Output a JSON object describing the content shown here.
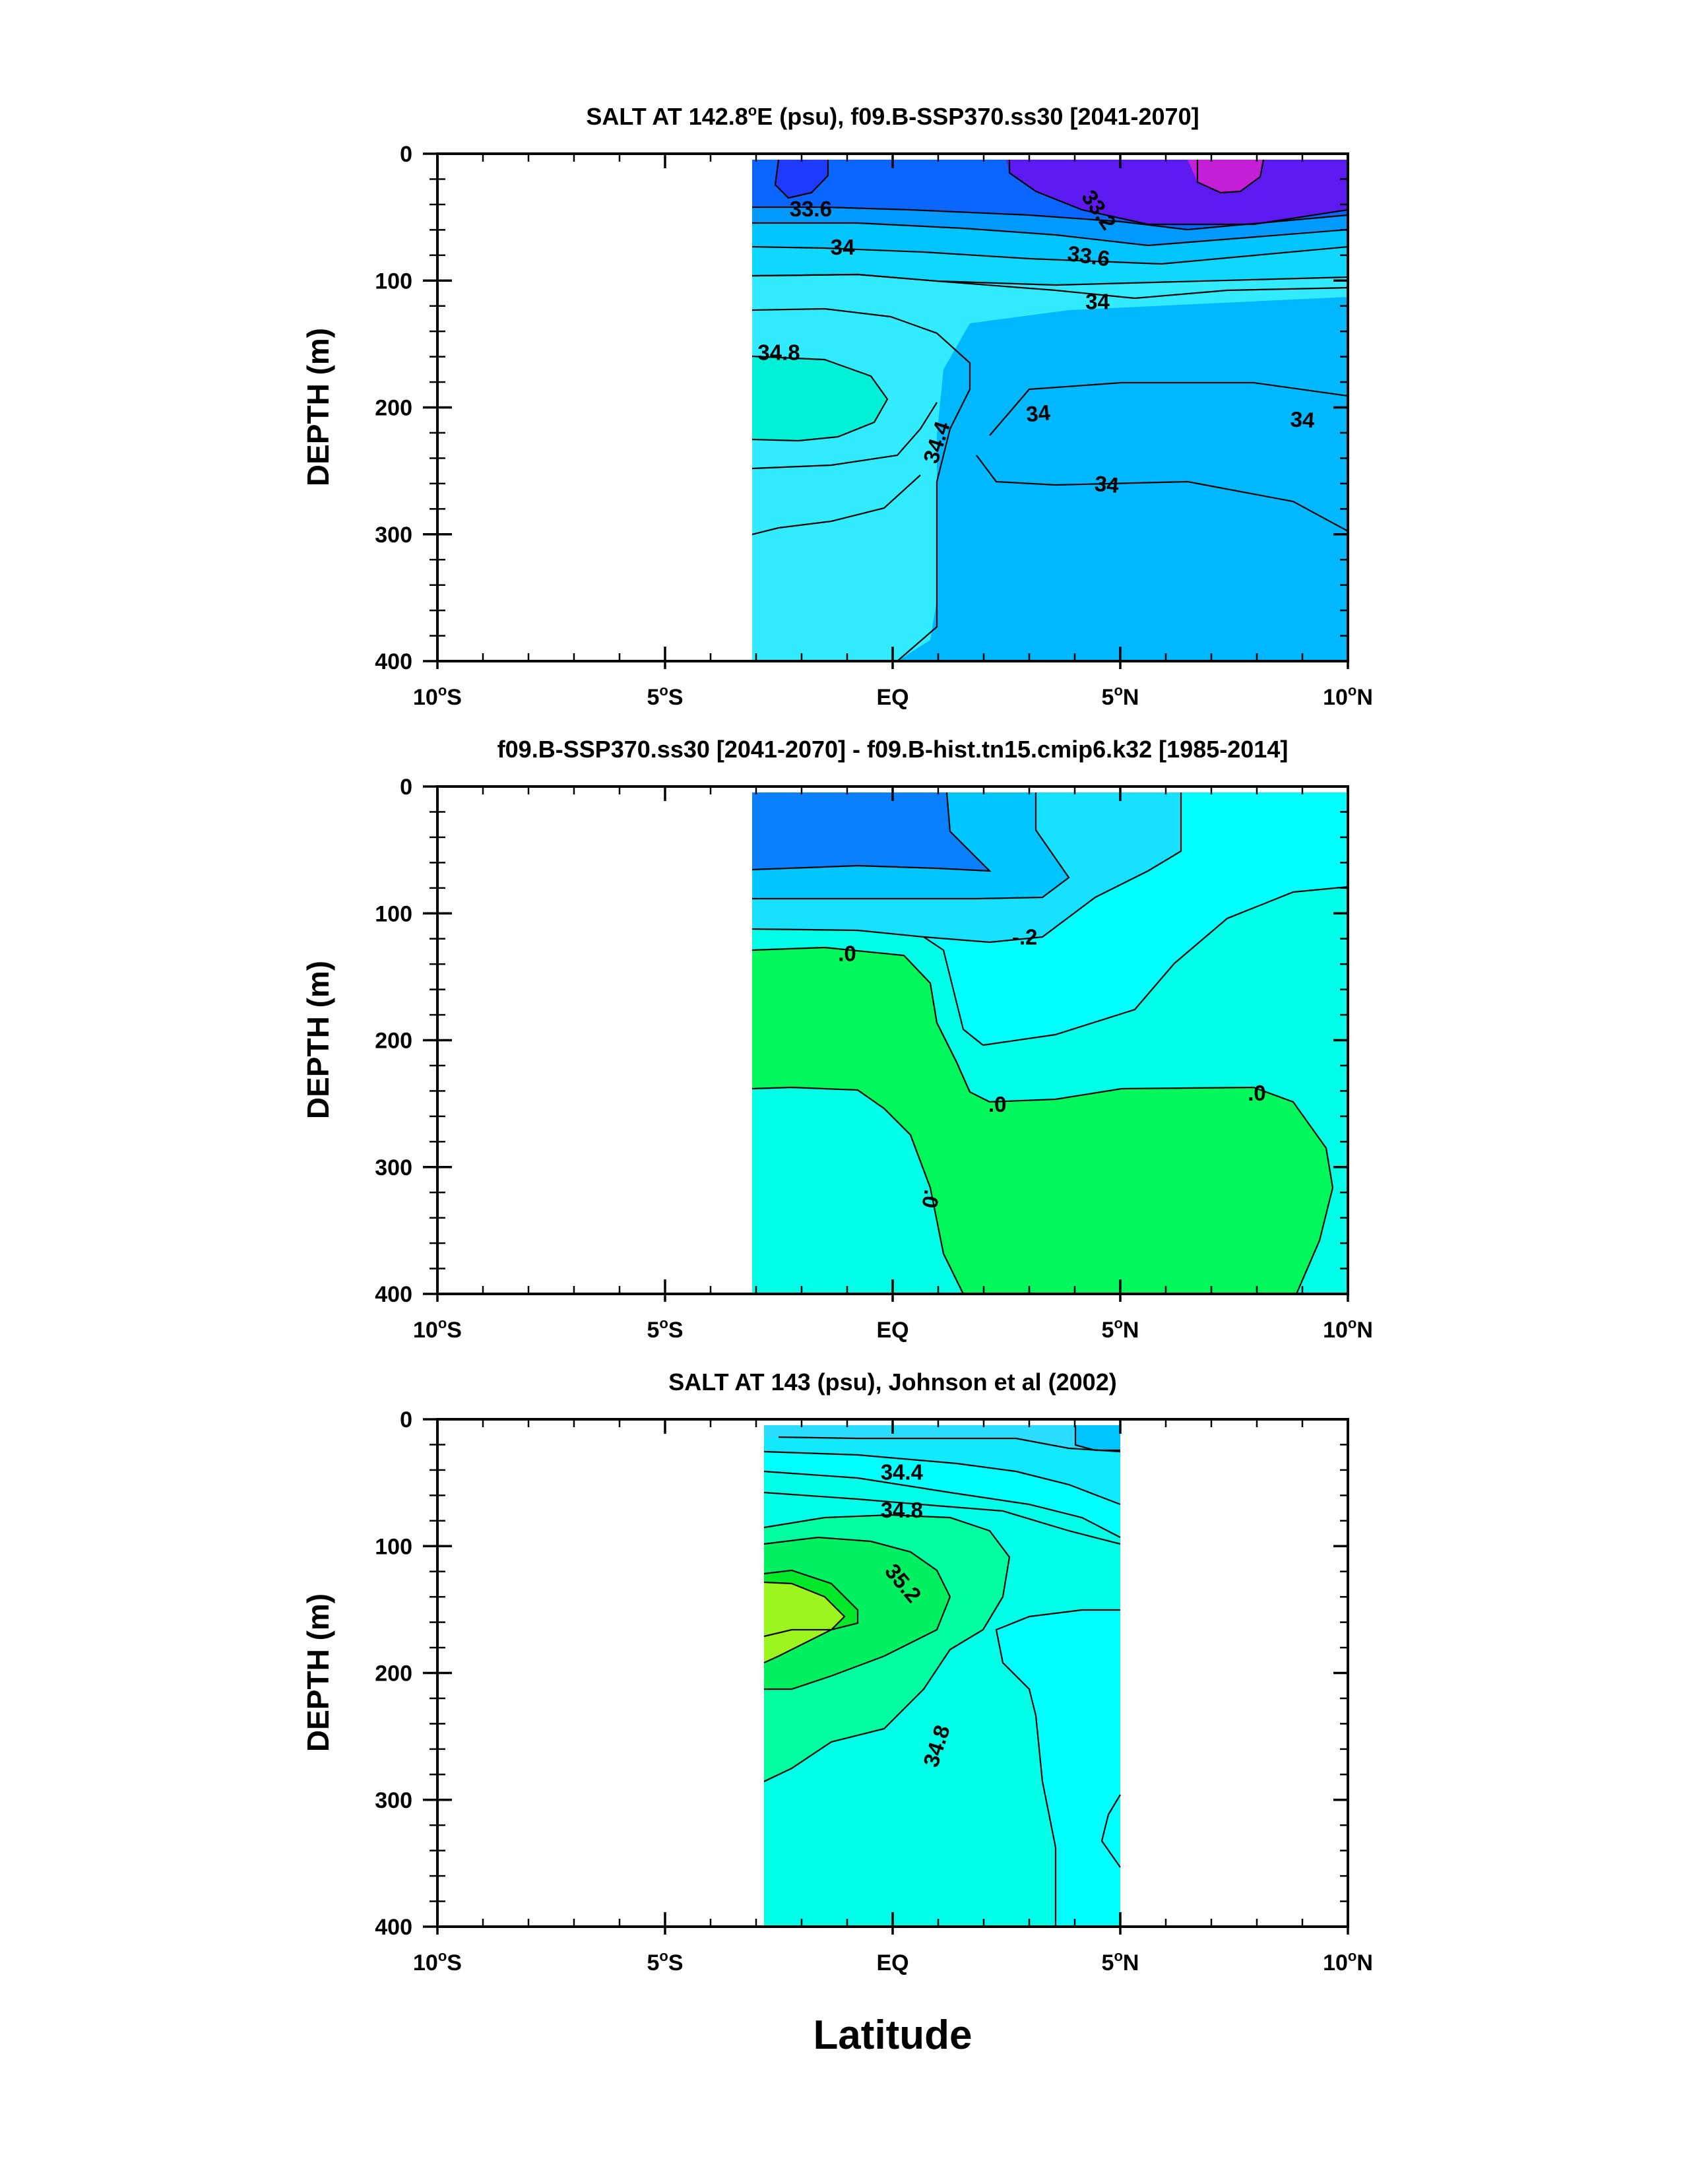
{
  "xlabel": "Latitude",
  "chart_data": [
    {
      "type": "contour",
      "title": "SALT AT 142.8°E (psu), f09.B-SSP370.ss30 [2041-2070]",
      "title_parts": {
        "pre": "SALT AT 142.8",
        "sup": "o",
        "post": "E (psu), f09.B-SSP370.ss30 [2041-2070]"
      },
      "ylabel": "DEPTH (m)",
      "xlim": [
        -10,
        10
      ],
      "ylim": [
        400,
        0
      ],
      "data_extent_lat": [
        -3.0,
        10.0
      ],
      "data_extent_depth": [
        5,
        400
      ],
      "x_ticks": [
        {
          "value": -10,
          "num": "10",
          "hem": "S"
        },
        {
          "value": -5,
          "num": "5",
          "hem": "S"
        },
        {
          "value": 0,
          "num": "EQ",
          "hem": ""
        },
        {
          "value": 5,
          "num": "5",
          "hem": "N"
        },
        {
          "value": 10,
          "num": "10",
          "hem": "N"
        }
      ],
      "y_ticks": [
        0,
        100,
        200,
        300,
        400
      ],
      "contour_labels": [
        {
          "text": "33.6",
          "lat": -1.8,
          "depth": 45,
          "angle": 0
        },
        {
          "text": "34",
          "lat": -1.1,
          "depth": 75,
          "angle": 0
        },
        {
          "text": "33.2",
          "lat": 4.5,
          "depth": 45,
          "angle": 55
        },
        {
          "text": "33.6",
          "lat": 4.3,
          "depth": 82,
          "angle": 8
        },
        {
          "text": "34",
          "lat": 4.5,
          "depth": 118,
          "angle": 0
        },
        {
          "text": "34.8",
          "lat": -2.5,
          "depth": 158,
          "angle": 0
        },
        {
          "text": "34.4",
          "lat": 1.0,
          "depth": 228,
          "angle": -72
        },
        {
          "text": "34",
          "lat": 3.2,
          "depth": 206,
          "angle": -5
        },
        {
          "text": "34",
          "lat": 9.0,
          "depth": 211,
          "angle": 3
        },
        {
          "text": "34",
          "lat": 4.7,
          "depth": 262,
          "angle": 5
        }
      ]
    },
    {
      "type": "contour",
      "title": "f09.B-SSP370.ss30 [2041-2070] - f09.B-hist.tn15.cmip6.k32 [1985-2014]",
      "ylabel": "DEPTH (m)",
      "xlim": [
        -10,
        10
      ],
      "ylim": [
        400,
        0
      ],
      "data_extent_lat": [
        -3.0,
        10.0
      ],
      "data_extent_depth": [
        5,
        400
      ],
      "x_ticks": [
        {
          "value": -10,
          "num": "10",
          "hem": "S"
        },
        {
          "value": -5,
          "num": "5",
          "hem": "S"
        },
        {
          "value": 0,
          "num": "EQ",
          "hem": ""
        },
        {
          "value": 5,
          "num": "5",
          "hem": "N"
        },
        {
          "value": 10,
          "num": "10",
          "hem": "N"
        }
      ],
      "y_ticks": [
        0,
        100,
        200,
        300,
        400
      ],
      "contour_labels": [
        {
          "text": "-.2",
          "lat": 2.9,
          "depth": 120,
          "angle": 0
        },
        {
          "text": ".0",
          "lat": -1.0,
          "depth": 133,
          "angle": 0
        },
        {
          "text": ".0",
          "lat": 2.3,
          "depth": 252,
          "angle": 0
        },
        {
          "text": ".0",
          "lat": 8.0,
          "depth": 243,
          "angle": 0
        },
        {
          "text": ".0",
          "lat": 0.8,
          "depth": 325,
          "angle": 100
        }
      ]
    },
    {
      "type": "contour",
      "title": "SALT AT 143 (psu), Johnson et al (2002)",
      "ylabel": "DEPTH (m)",
      "xlim": [
        -10,
        10
      ],
      "ylim": [
        400,
        0
      ],
      "data_extent_lat": [
        -2.8,
        5.0
      ],
      "data_extent_depth": [
        5,
        400
      ],
      "x_ticks": [
        {
          "value": -10,
          "num": "10",
          "hem": "S"
        },
        {
          "value": -5,
          "num": "5",
          "hem": "S"
        },
        {
          "value": 0,
          "num": "EQ",
          "hem": ""
        },
        {
          "value": 5,
          "num": "5",
          "hem": "N"
        },
        {
          "value": 10,
          "num": "10",
          "hem": "N"
        }
      ],
      "y_ticks": [
        0,
        100,
        200,
        300,
        400
      ],
      "contour_labels": [
        {
          "text": "34.4",
          "lat": 0.2,
          "depth": 43,
          "angle": 0
        },
        {
          "text": "34.8",
          "lat": 0.2,
          "depth": 73,
          "angle": 0
        },
        {
          "text": "35.2",
          "lat": 0.2,
          "depth": 130,
          "angle": 50
        },
        {
          "text": "34.8",
          "lat": 1.0,
          "depth": 258,
          "angle": -72
        }
      ]
    }
  ]
}
